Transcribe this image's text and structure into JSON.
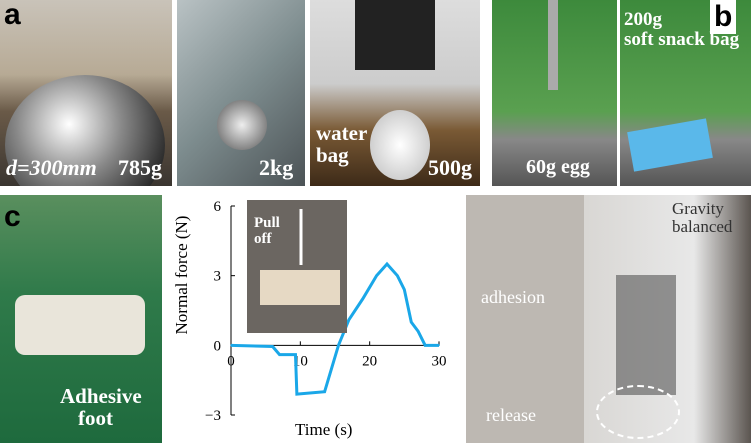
{
  "panels": {
    "a": "a",
    "b": "b",
    "c": "c"
  },
  "photos": {
    "a1": {
      "label1": "d=300mm",
      "label2": "785g"
    },
    "a2": {
      "label": "2kg"
    },
    "a3": {
      "label1": "water",
      "label1b": "bag",
      "label2": "500g"
    },
    "b1": {
      "label": "60g egg"
    },
    "b2": {
      "label1": "200g",
      "label2": "soft snack bag"
    },
    "c1": {
      "label1": "Adhesive",
      "label2": "foot"
    },
    "c3": {
      "gravity1": "Gravity",
      "gravity2": "balanced",
      "adhesion": "adhesion",
      "release": "release"
    }
  },
  "chart_data": {
    "type": "line",
    "xlabel": "Time (s)",
    "ylabel": "Normal force (N)",
    "xlim": [
      0,
      30
    ],
    "ylim": [
      -3,
      6
    ],
    "xticks": [
      "0",
      "10",
      "20",
      "30"
    ],
    "yticks": [
      "−3",
      "0",
      "3",
      "6"
    ],
    "inset_label1": "Pull",
    "inset_label2": "off",
    "color": "#1aa7e8",
    "x": [
      0,
      6,
      7,
      9.3,
      9.5,
      13.5,
      15.5,
      17,
      19,
      21,
      22.5,
      24,
      25,
      26,
      27,
      28,
      30
    ],
    "y": [
      0,
      -0.05,
      -0.4,
      -0.4,
      -2.1,
      -2.0,
      0,
      1.1,
      2.0,
      3.0,
      3.5,
      3.0,
      2.4,
      1.0,
      0.6,
      0,
      0
    ]
  }
}
